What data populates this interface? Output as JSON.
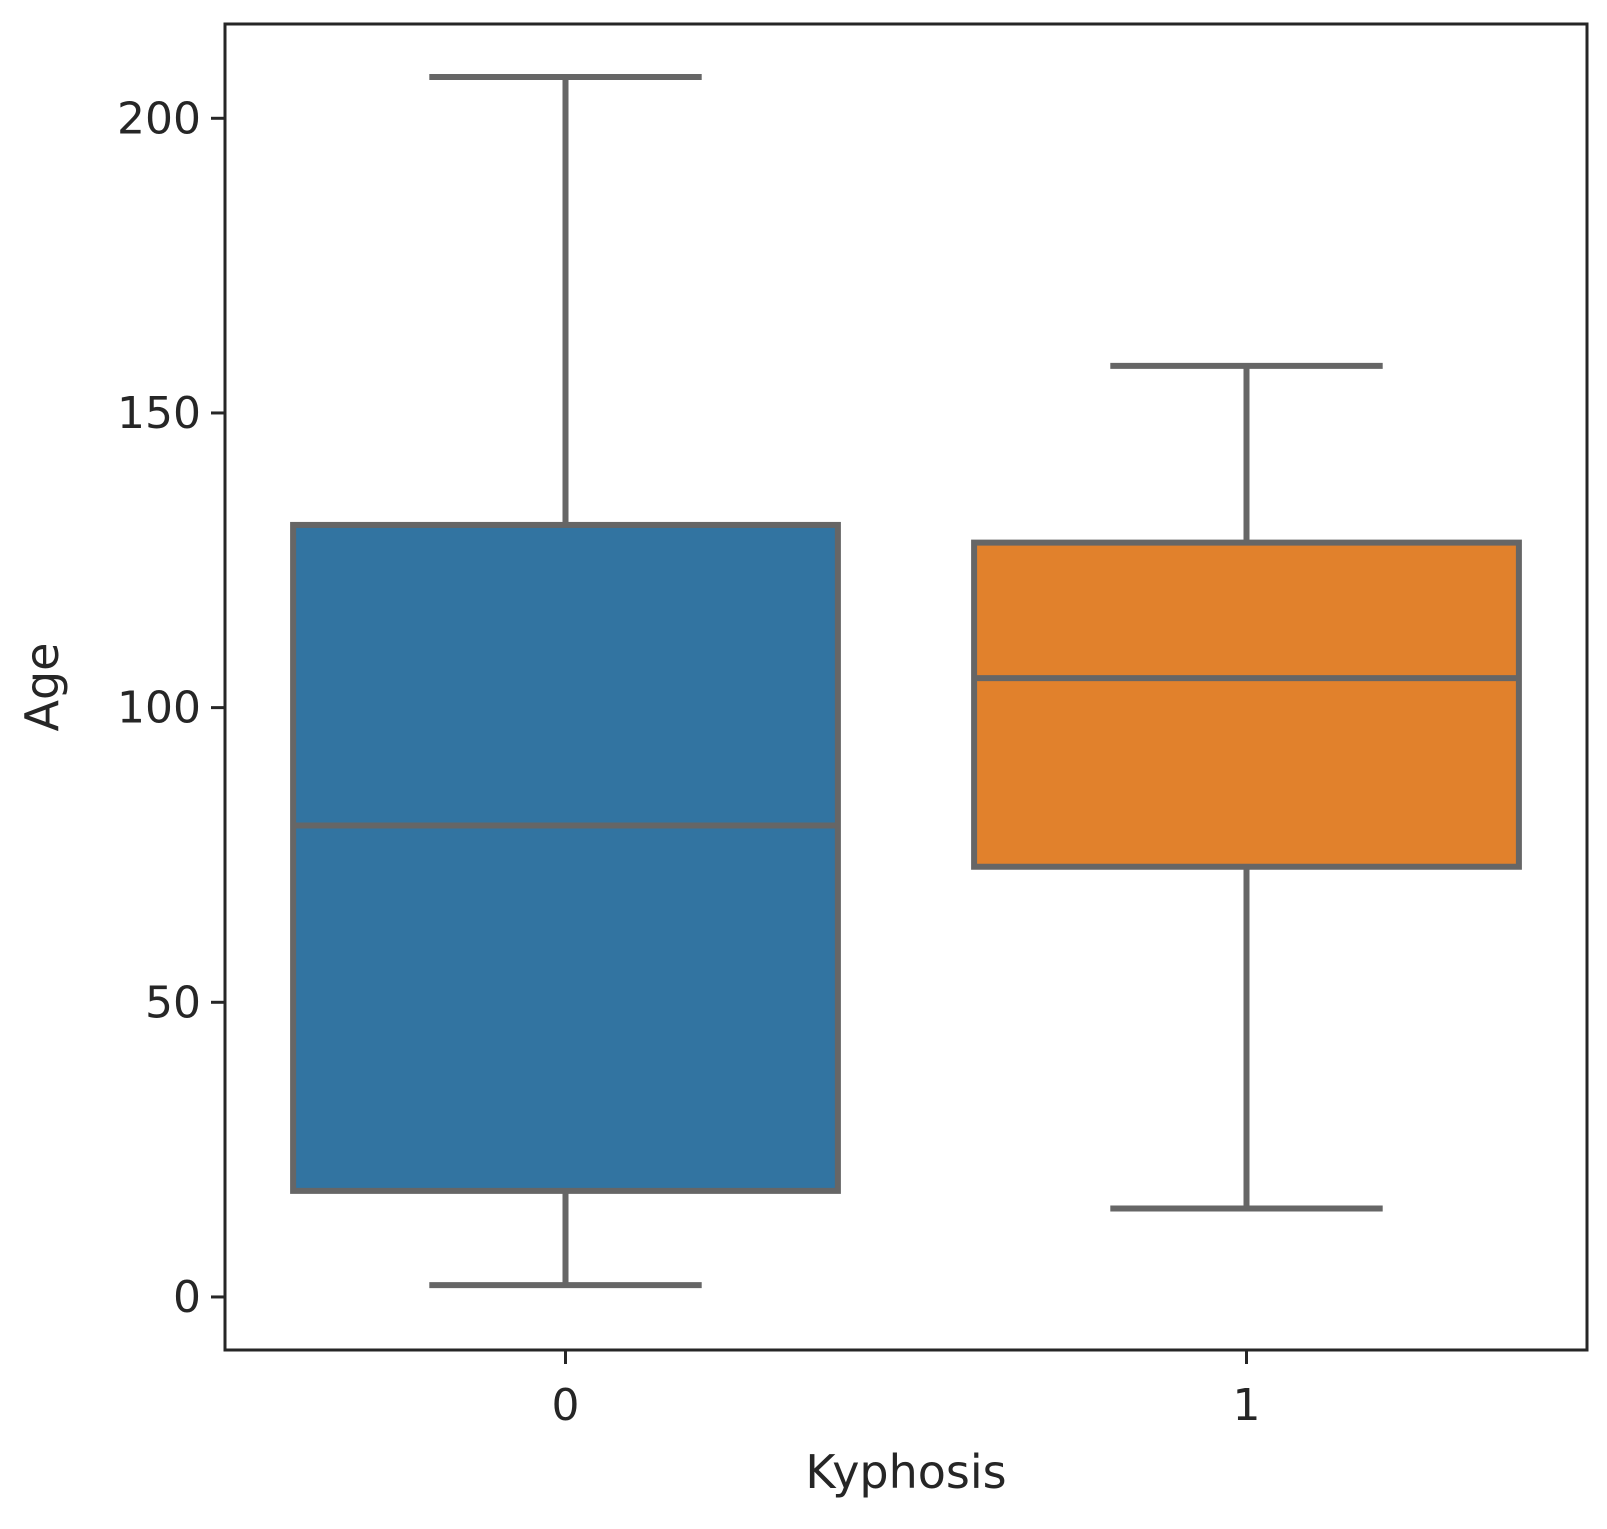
{
  "chart_data": {
    "type": "box",
    "xlabel": "Kyphosis",
    "ylabel": "Age",
    "ylim": [
      -9,
      216
    ],
    "yticks": [
      0,
      50,
      100,
      150,
      200
    ],
    "grid": false,
    "boxes": [
      {
        "category": "0",
        "whisker_low": 2,
        "q1": 18,
        "median": 80,
        "q3": 131,
        "whisker_high": 207,
        "color": "#3274a1"
      },
      {
        "category": "1",
        "whisker_low": 15,
        "q1": 73,
        "median": 105,
        "q3": 128,
        "whisker_high": 158,
        "color": "#e1812c"
      }
    ],
    "line_color": "#666666"
  }
}
